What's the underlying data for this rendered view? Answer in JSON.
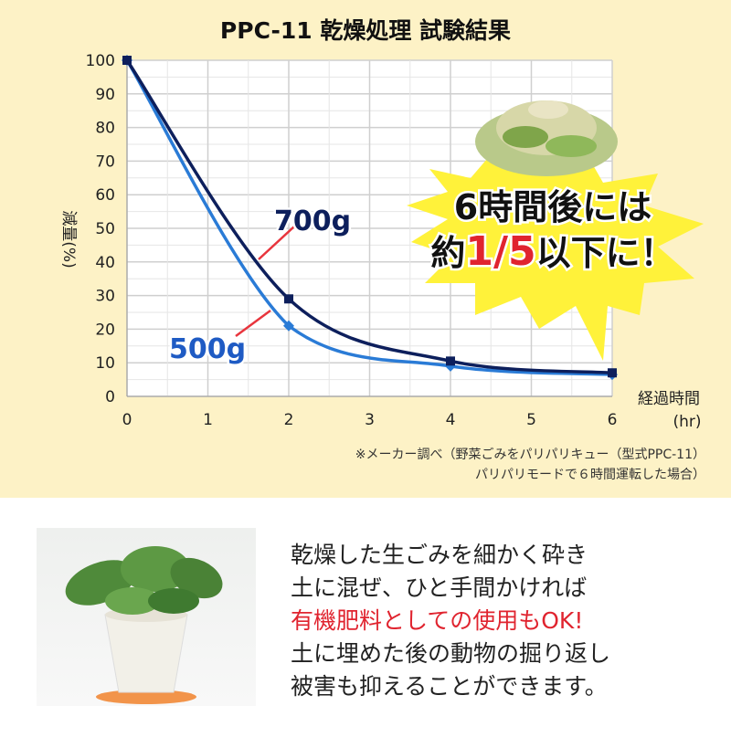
{
  "title": "PPC-11 乾燥処理 試験結果",
  "chart_data": {
    "type": "line",
    "title": "PPC-11 乾燥処理 試験結果",
    "xlabel": "経過時間",
    "xunit": "(hr)",
    "ylabel": "減量(%)",
    "xlim": [
      0,
      6
    ],
    "ylim": [
      0,
      100
    ],
    "xticks": [
      "0",
      "1",
      "2",
      "3",
      "4",
      "5",
      "6"
    ],
    "yticks": [
      "0",
      "10",
      "20",
      "30",
      "40",
      "50",
      "60",
      "70",
      "80",
      "90",
      "100"
    ],
    "grid": true,
    "series": [
      {
        "name": "700g",
        "color": "#0d1f5c",
        "x": [
          0,
          2,
          4,
          6
        ],
        "y": [
          100,
          29,
          10.5,
          7
        ]
      },
      {
        "name": "500g",
        "color": "#2a7bd6",
        "x": [
          0,
          2,
          4,
          6
        ],
        "y": [
          100,
          21,
          9,
          6.5
        ]
      }
    ]
  },
  "callout": {
    "line1": "6時間後には",
    "line2_pre": "約",
    "line2_highlight": "1/5",
    "line2_post": "以下に！"
  },
  "notes": [
    "※メーカー調べ（野菜ごみをパリパリキュー（型式PPC-11）",
    "パリパリモードで６時間運転した場合）"
  ],
  "body_lines": [
    "乾燥した生ごみを細かく砕き",
    "土に混ぜ、ひと手間かければ",
    "有機肥料としての使用もOK!",
    "土に埋めた後の動物の掘り返し",
    "被害も抑えることができます。"
  ],
  "colors": {
    "background": "#fdf2c6",
    "highlight": "#e0242f",
    "burst": "#fff23a"
  }
}
